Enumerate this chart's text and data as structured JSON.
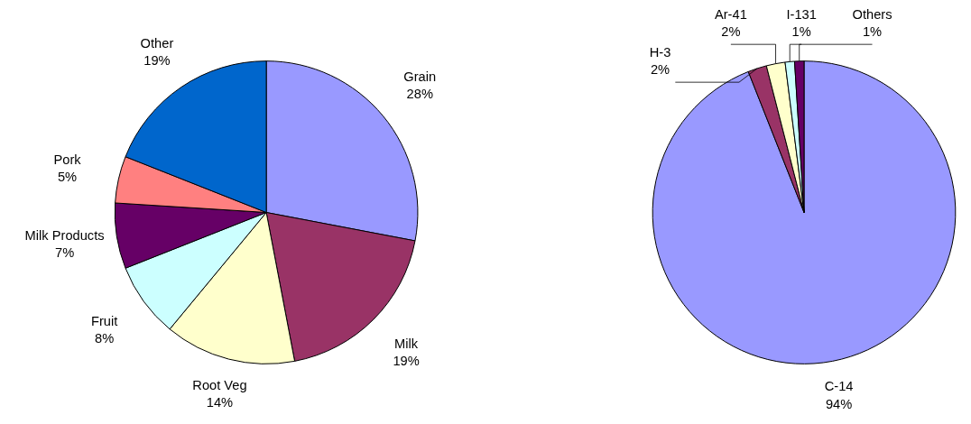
{
  "chart_data": [
    {
      "type": "pie",
      "categories": [
        "Grain",
        "Milk",
        "Root Veg",
        "Fruit",
        "Milk Products",
        "Pork",
        "Other"
      ],
      "values": [
        28,
        19,
        14,
        8,
        7,
        5,
        19
      ],
      "colors": [
        "#9999ff",
        "#993366",
        "#ffffcc",
        "#ccffff",
        "#660066",
        "#ff8080",
        "#0066cc"
      ],
      "value_labels": [
        "28%",
        "19%",
        "14%",
        "8%",
        "7%",
        "5%",
        "19%"
      ]
    },
    {
      "type": "pie",
      "categories": [
        "C-14",
        "H-3",
        "Ar-41",
        "I-131",
        "Others"
      ],
      "values": [
        94,
        2,
        2,
        1,
        1
      ],
      "colors": [
        "#9999ff",
        "#993366",
        "#ffffcc",
        "#ccffff",
        "#660066"
      ],
      "value_labels": [
        "94%",
        "2%",
        "2%",
        "1%",
        "1%"
      ]
    }
  ]
}
